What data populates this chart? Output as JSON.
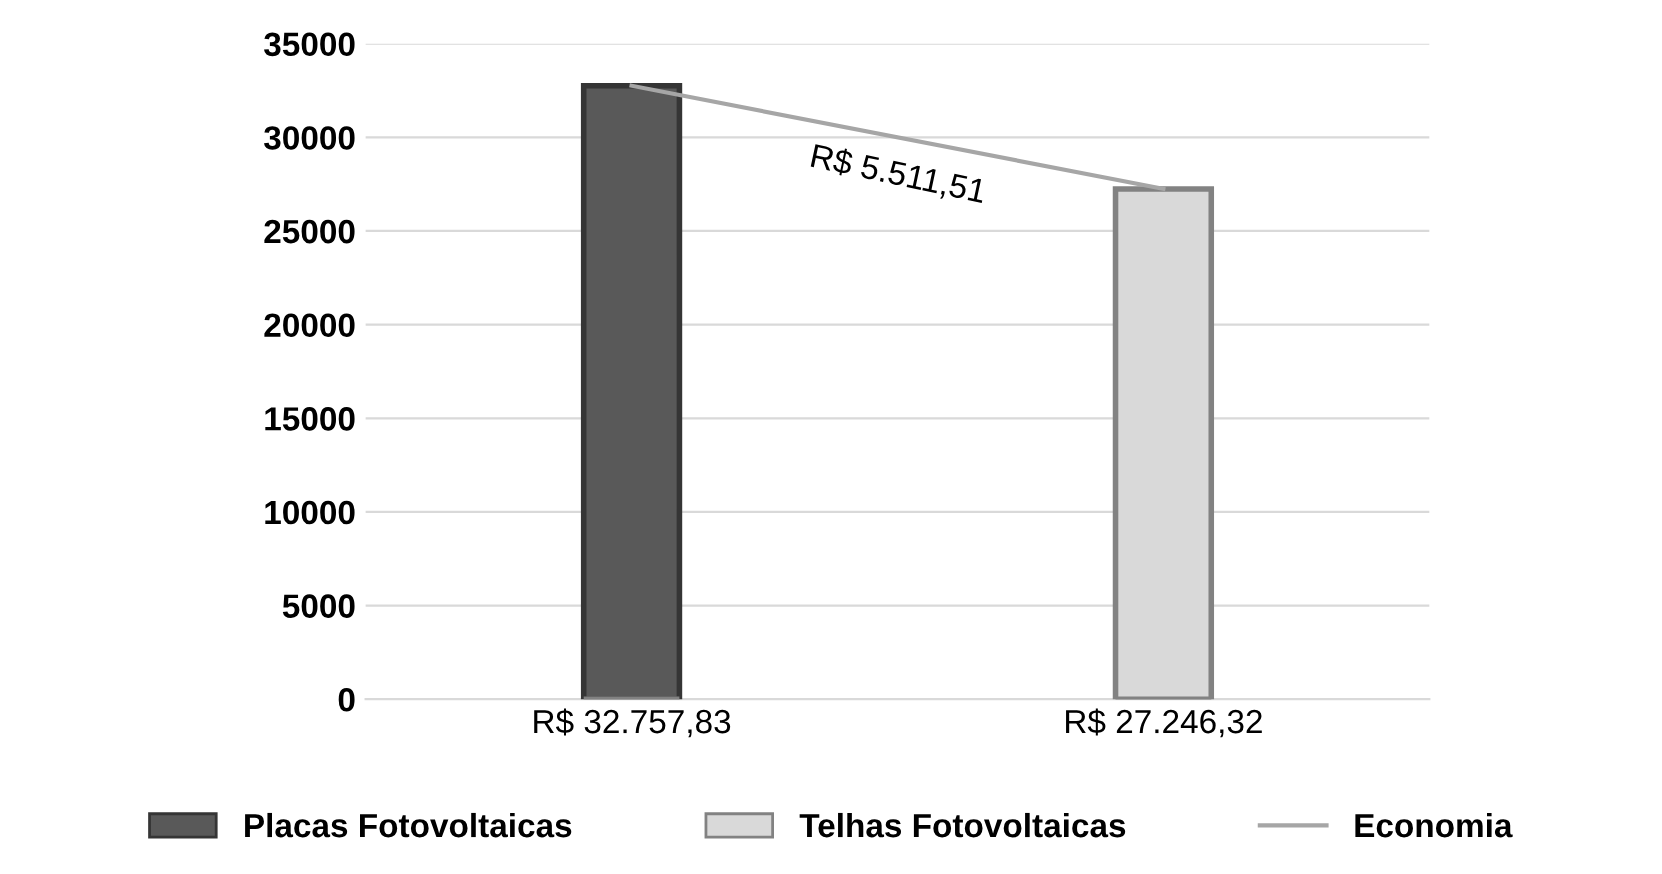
{
  "chart_data": {
    "type": "bar",
    "categories": [
      "R$ 32.757,83",
      "R$ 27.246,32"
    ],
    "series": [
      {
        "name": "Placas Fotovoltaicas",
        "color": "#595959",
        "values": [
          32757.83,
          null
        ]
      },
      {
        "name": "Telhas Fotovoltaicas",
        "color": "#d9d9d9",
        "values": [
          null,
          27246.32
        ]
      },
      {
        "name": "Economia",
        "type": "line",
        "color": "#a6a6a6",
        "values": [
          32757.83,
          27246.32
        ]
      }
    ],
    "annotations": [
      "R$ 5.511,51"
    ],
    "ylim": [
      0,
      35000
    ],
    "yticks": [
      0,
      5000,
      10000,
      15000,
      20000,
      25000,
      30000,
      35000
    ],
    "grid": "y",
    "legend": "bottom"
  }
}
